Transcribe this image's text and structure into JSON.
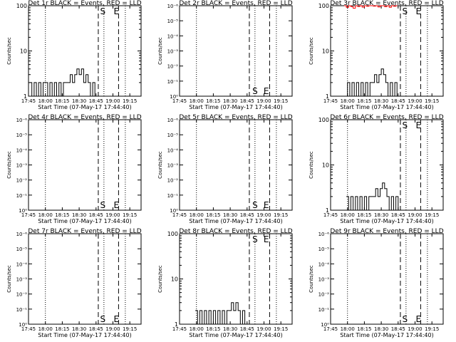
{
  "x_tick_labels": [
    "17:45",
    "18:00",
    "18:15",
    "18:30",
    "18:45",
    "19:00",
    "19:15"
  ],
  "x_axis_label": "Start Time (07-May-17 17:44:40)",
  "y_axis_label": "Counts/sec",
  "log_tick_labels": [
    "10⁰",
    "10⁻¹",
    "10⁻²",
    "10⁻³",
    "10⁻⁴",
    "10⁻⁵",
    "10⁻⁶"
  ],
  "lin_tick_labels": [
    "1",
    "10",
    "100"
  ],
  "marker_S": "S",
  "marker_E": "E",
  "colors": {
    "events": "#000000",
    "lld": "#ff0000",
    "background": "#ffffff"
  },
  "chart_data": [
    {
      "type": "line",
      "title": "Det 1r BLACK = Events, RED = LLD",
      "xlim": [
        "17:45",
        "19:25"
      ],
      "yscale": "log",
      "ylim": [
        1,
        100
      ],
      "dotted_lines": [
        "18:00",
        "18:52",
        "19:11"
      ],
      "dashed_lines": [
        "18:47",
        "19:05"
      ],
      "s_marker_x": "18:48",
      "e_marker_x": "19:00",
      "marker_position": "top",
      "series": [
        {
          "color": "#000000",
          "x": [
            "17:46",
            "17:48",
            "17:50",
            "17:52",
            "17:54",
            "17:56",
            "17:58",
            "18:00",
            "18:02",
            "18:04",
            "18:06",
            "18:08",
            "18:10",
            "18:12",
            "18:14",
            "18:16",
            "18:18",
            "18:20",
            "18:22",
            "18:24",
            "18:26",
            "18:28",
            "18:30",
            "18:32",
            "18:34",
            "18:36",
            "18:38",
            "18:40",
            "18:42",
            "18:44"
          ],
          "y": [
            2,
            1,
            2,
            1,
            2,
            1,
            2,
            2,
            1,
            2,
            1,
            2,
            1,
            2,
            1,
            2,
            2,
            2,
            3,
            2,
            3,
            4,
            3,
            4,
            2,
            3,
            2,
            1,
            2,
            1
          ]
        }
      ]
    },
    {
      "type": "line",
      "title": "Det 2r BLACK = Events, RED = LLD",
      "xlim": [
        "17:45",
        "19:25"
      ],
      "yscale": "log",
      "dotted_lines": [
        "18:00",
        "18:52",
        "19:11"
      ],
      "dashed_lines": [
        "18:47",
        "19:05"
      ],
      "s_marker_x": "18:49",
      "e_marker_x": "18:59",
      "marker_position": "bottom",
      "series": []
    },
    {
      "type": "line",
      "title": "Det 3r BLACK = Events, RED = LLD",
      "xlim": [
        "17:45",
        "19:25"
      ],
      "yscale": "log",
      "ylim": [
        1,
        100
      ],
      "dotted_lines": [
        "18:00",
        "18:52",
        "19:11"
      ],
      "dashed_lines": [
        "18:47",
        "19:05"
      ],
      "s_marker_x": "18:48",
      "e_marker_x": "19:00",
      "marker_position": "top",
      "series": [
        {
          "color": "#ff0000",
          "x": [
            "17:57",
            "17:59",
            "18:01",
            "18:03",
            "18:05",
            "18:07",
            "18:09",
            "18:11",
            "18:13",
            "18:15",
            "18:17",
            "18:19",
            "18:21",
            "18:23",
            "18:25",
            "18:27",
            "18:29",
            "18:31",
            "18:33",
            "18:35",
            "18:37",
            "18:39",
            "18:41",
            "18:43"
          ],
          "y": [
            100,
            92,
            100,
            95,
            88,
            100,
            96,
            100,
            93,
            100,
            97,
            100,
            100,
            98,
            100,
            94,
            100,
            100,
            95,
            100,
            92,
            100,
            97,
            100
          ]
        },
        {
          "color": "#000000",
          "x": [
            "17:46",
            "17:48",
            "17:50",
            "17:52",
            "17:54",
            "17:56",
            "17:58",
            "18:00",
            "18:02",
            "18:04",
            "18:06",
            "18:08",
            "18:10",
            "18:12",
            "18:14",
            "18:16",
            "18:18",
            "18:20",
            "18:22",
            "18:24",
            "18:26",
            "18:28",
            "18:30",
            "18:32",
            "18:34",
            "18:36",
            "18:38",
            "18:40",
            "18:42",
            "18:44"
          ],
          "y": [
            1,
            1,
            1,
            1,
            1,
            1,
            1,
            2,
            1,
            2,
            1,
            2,
            1,
            2,
            1,
            2,
            1,
            2,
            2,
            3,
            2,
            3,
            4,
            3,
            2,
            1,
            2,
            1,
            2,
            1
          ]
        }
      ]
    },
    {
      "type": "line",
      "title": "Det 4r BLACK = Events, RED = LLD",
      "xlim": [
        "17:45",
        "19:25"
      ],
      "yscale": "log",
      "dotted_lines": [
        "18:00",
        "18:52",
        "19:11"
      ],
      "dashed_lines": [
        "18:47",
        "19:05"
      ],
      "s_marker_x": "18:48",
      "e_marker_x": "19:00",
      "marker_position": "bottom",
      "series": []
    },
    {
      "type": "line",
      "title": "Det 5r BLACK = Events, RED = LLD",
      "xlim": [
        "17:45",
        "19:25"
      ],
      "yscale": "log",
      "dotted_lines": [
        "18:00",
        "18:52",
        "19:11"
      ],
      "dashed_lines": [
        "18:47",
        "19:05"
      ],
      "s_marker_x": "18:49",
      "e_marker_x": "18:59",
      "marker_position": "bottom",
      "series": []
    },
    {
      "type": "line",
      "title": "Det 6r BLACK = Events, RED = LLD",
      "xlim": [
        "17:45",
        "19:25"
      ],
      "yscale": "log",
      "ylim": [
        1,
        100
      ],
      "dotted_lines": [
        "18:00",
        "18:52",
        "19:11"
      ],
      "dashed_lines": [
        "18:47",
        "19:05"
      ],
      "s_marker_x": "18:48",
      "e_marker_x": "19:00",
      "marker_position": "top",
      "series": [
        {
          "color": "#000000",
          "x": [
            "17:59",
            "18:01",
            "18:03",
            "18:05",
            "18:07",
            "18:09",
            "18:11",
            "18:13",
            "18:15",
            "18:17",
            "18:19",
            "18:21",
            "18:23",
            "18:25",
            "18:27",
            "18:29",
            "18:31",
            "18:33",
            "18:35",
            "18:37",
            "18:39",
            "18:41",
            "18:43",
            "18:45"
          ],
          "y": [
            2,
            1,
            2,
            1,
            2,
            1,
            2,
            1,
            2,
            1,
            2,
            2,
            2,
            3,
            2,
            3,
            4,
            3,
            2,
            1,
            2,
            1,
            2,
            1
          ]
        }
      ]
    },
    {
      "type": "line",
      "title": "Det 7r BLACK = Events, RED = LLD",
      "xlim": [
        "17:45",
        "19:25"
      ],
      "yscale": "log",
      "dotted_lines": [
        "18:00",
        "18:52",
        "19:11"
      ],
      "dashed_lines": [
        "18:47",
        "19:05"
      ],
      "s_marker_x": "18:48",
      "e_marker_x": "19:00",
      "marker_position": "bottom",
      "series": []
    },
    {
      "type": "line",
      "title": "Det 8r BLACK = Events, RED = LLD",
      "xlim": [
        "17:45",
        "19:25"
      ],
      "yscale": "log",
      "ylim": [
        1,
        100
      ],
      "dotted_lines": [
        "18:00",
        "18:52",
        "19:11"
      ],
      "dashed_lines": [
        "18:47",
        "19:05"
      ],
      "s_marker_x": "18:49",
      "e_marker_x": "18:59",
      "marker_position": "top",
      "series": [
        {
          "color": "#000000",
          "x": [
            "17:59",
            "18:01",
            "18:03",
            "18:05",
            "18:07",
            "18:09",
            "18:11",
            "18:13",
            "18:15",
            "18:17",
            "18:19",
            "18:21",
            "18:23",
            "18:25",
            "18:27",
            "18:29",
            "18:31",
            "18:33",
            "18:35",
            "18:37",
            "18:39",
            "18:41",
            "18:43"
          ],
          "y": [
            2,
            1,
            2,
            1,
            2,
            1,
            2,
            1,
            2,
            1,
            2,
            1,
            2,
            1,
            2,
            2,
            3,
            2,
            3,
            2,
            1,
            2,
            1
          ]
        }
      ]
    },
    {
      "type": "line",
      "title": "Det 9r BLACK = Events, RED = LLD",
      "xlim": [
        "17:45",
        "19:25"
      ],
      "yscale": "log",
      "dotted_lines": [
        "18:00",
        "18:52",
        "19:11"
      ],
      "dashed_lines": [
        "18:47",
        "19:05"
      ],
      "s_marker_x": "18:48",
      "e_marker_x": "19:00",
      "marker_position": "bottom",
      "series": []
    }
  ]
}
